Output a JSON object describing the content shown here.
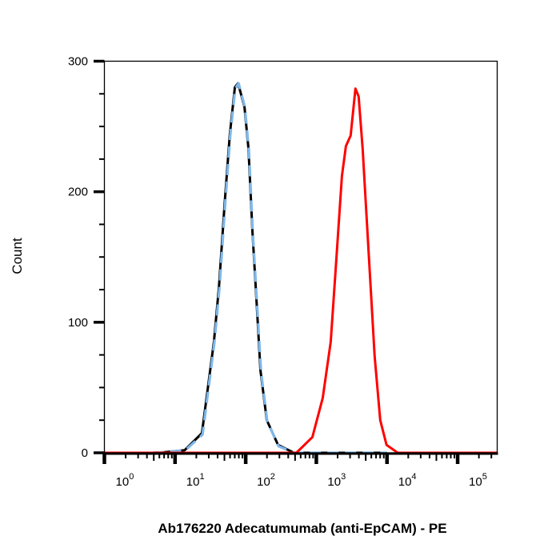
{
  "chart_data": {
    "type": "line",
    "title": "",
    "xlabel": "Ab176220 Adecatumumab (anti-EpCAM) - PE",
    "ylabel": "Count",
    "x_scale": "log",
    "xlim": [
      1,
      363000
    ],
    "ylim": [
      0,
      300
    ],
    "x_ticks": [
      1,
      10,
      100,
      1000,
      10000,
      100000
    ],
    "x_tick_labels": [
      {
        "base": "10",
        "exp": "0"
      },
      {
        "base": "10",
        "exp": "1"
      },
      {
        "base": "10",
        "exp": "2"
      },
      {
        "base": "10",
        "exp": "3"
      },
      {
        "base": "10",
        "exp": "4"
      },
      {
        "base": "10",
        "exp": "5"
      }
    ],
    "y_ticks": [
      0,
      100,
      200,
      300
    ],
    "y_tick_labels": [
      "0",
      "100",
      "200",
      "300"
    ],
    "y_minor_step": 25,
    "grid": false,
    "legend": "none",
    "series": [
      {
        "color": "#000000",
        "style": "solid",
        "x": [
          1,
          4.8,
          7.1,
          13.7,
          24,
          35.5,
          41.8,
          50.2,
          59.7,
          70.3,
          78.1,
          96.2,
          109.6,
          124.8,
          142,
          162,
          199,
          287,
          483,
          10000
        ],
        "y": [
          0,
          0,
          0.5,
          2,
          15,
          85,
          127,
          190,
          244,
          280,
          283,
          265,
          233,
          169,
          117,
          63,
          25,
          6,
          0,
          0
        ]
      },
      {
        "color": "#7fb8ea",
        "style": "dashed",
        "x": [
          4.8,
          7.5,
          14,
          24.5,
          36,
          42.5,
          51,
          60.5,
          71,
          79.5,
          97,
          111,
          126,
          144,
          165,
          202,
          292,
          490,
          10000
        ],
        "y": [
          0,
          0.5,
          2,
          14,
          84,
          126,
          189,
          243,
          279,
          283,
          265,
          232,
          168,
          116,
          62,
          24,
          5,
          0,
          0
        ]
      },
      {
        "color": "#ff0000",
        "style": "solid",
        "x": [
          1,
          300,
          522,
          879,
          1232,
          1596,
          1915,
          2300,
          2620,
          3060,
          3580,
          3970,
          4520,
          5150,
          5870,
          6680,
          8020,
          9870,
          14200,
          363000
        ],
        "y": [
          0,
          0,
          0,
          12,
          42,
          85,
          148,
          212,
          235,
          243,
          279,
          273,
          233,
          180,
          127,
          74,
          25,
          6,
          0,
          0
        ]
      }
    ]
  }
}
